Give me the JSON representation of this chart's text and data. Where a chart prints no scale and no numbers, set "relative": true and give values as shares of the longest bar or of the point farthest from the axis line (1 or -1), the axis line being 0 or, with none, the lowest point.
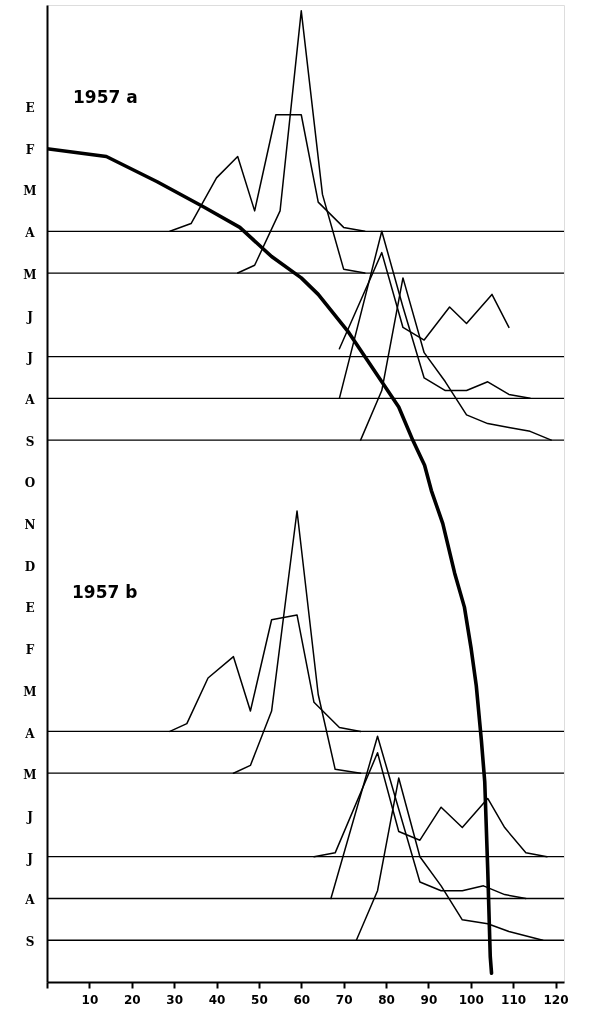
{
  "chart_data": {
    "type": "line",
    "relative": true,
    "annotations": [
      "1957 a",
      "1957 b",
      "E",
      "F",
      "M",
      "A",
      "M",
      "J",
      "J",
      "A",
      "S",
      "O",
      "N",
      "D",
      "E",
      "F",
      "M",
      "A",
      "M",
      "J",
      "J",
      "A",
      "S"
    ],
    "xlim": [
      0,
      122
    ],
    "xticks": [
      {
        "value": 0,
        "label": null
      },
      10,
      20,
      30,
      40,
      50,
      60,
      70,
      80,
      90,
      100,
      110,
      120
    ],
    "ref_lines": [
      {
        "axis": "y",
        "value": 0.773,
        "color": "#000000"
      },
      {
        "axis": "y",
        "value": 0.73,
        "color": "#000000"
      },
      {
        "axis": "y",
        "value": 0.644,
        "color": "#000000"
      },
      {
        "axis": "y",
        "value": 0.601,
        "color": "#000000"
      },
      {
        "axis": "y",
        "value": 0.558,
        "color": "#000000"
      },
      {
        "axis": "y",
        "value": 0.258,
        "color": "#000000"
      },
      {
        "axis": "y",
        "value": 0.215,
        "color": "#000000"
      },
      {
        "axis": "y",
        "value": 0.129,
        "color": "#000000"
      },
      {
        "axis": "y",
        "value": 0.086,
        "color": "#000000"
      },
      {
        "axis": "y",
        "value": 0.043,
        "color": "#000000"
      }
    ],
    "series": [
      {
        "color": "#000000",
        "x": [
          0,
          14,
          26,
          37,
          45.5,
          53,
          60,
          64,
          71,
          79,
          83,
          86.3,
          89.1,
          90.7,
          93.4,
          96.2,
          98.5,
          100.1,
          101.3,
          102.5,
          103.3,
          104,
          104.6,
          104.9
        ],
        "values": [
          0.858,
          0.85,
          0.824,
          0.798,
          0.777,
          0.747,
          0.725,
          0.708,
          0.67,
          0.618,
          0.592,
          0.558,
          0.532,
          0.506,
          0.472,
          0.421,
          0.386,
          0.343,
          0.305,
          0.249,
          0.206,
          0.116,
          0.026,
          0.009
        ]
      },
      {
        "color": "#000000",
        "x": [
          29,
          34,
          40,
          45,
          49,
          54,
          60,
          64,
          70,
          75
        ],
        "values": [
          0.773,
          0.781,
          0.828,
          0.85,
          0.794,
          0.893,
          0.893,
          0.803,
          0.777,
          0.773
        ]
      },
      {
        "color": "#000000",
        "x": [
          45,
          49,
          55,
          60,
          65,
          70,
          75
        ],
        "values": [
          0.73,
          0.738,
          0.794,
          1.0,
          0.811,
          0.734,
          0.73
        ]
      },
      {
        "color": "#000000",
        "x": [
          69,
          79,
          84,
          89,
          95,
          99,
          105,
          109
        ],
        "values": [
          0.652,
          0.751,
          0.674,
          0.661,
          0.695,
          0.678,
          0.708,
          0.674
        ]
      },
      {
        "color": "#000000",
        "x": [
          69,
          79,
          84,
          89,
          94,
          99,
          104,
          109,
          114
        ],
        "values": [
          0.601,
          0.773,
          0.695,
          0.622,
          0.609,
          0.609,
          0.618,
          0.605,
          0.601
        ]
      },
      {
        "color": "#000000",
        "x": [
          74,
          79,
          84,
          89,
          94,
          99,
          104,
          109,
          114,
          119
        ],
        "values": [
          0.558,
          0.609,
          0.725,
          0.648,
          0.618,
          0.584,
          0.575,
          0.571,
          0.567,
          0.558
        ]
      },
      {
        "color": "#000000",
        "x": [
          29,
          33,
          38,
          44,
          48,
          53,
          59,
          63,
          69,
          74
        ],
        "values": [
          0.258,
          0.266,
          0.313,
          0.335,
          0.279,
          0.373,
          0.378,
          0.288,
          0.262,
          0.258
        ]
      },
      {
        "color": "#000000",
        "x": [
          44,
          48,
          53,
          59,
          64,
          68,
          74
        ],
        "values": [
          0.215,
          0.223,
          0.279,
          0.485,
          0.296,
          0.219,
          0.215
        ]
      },
      {
        "color": "#000000",
        "x": [
          63,
          68,
          78,
          83,
          88,
          93,
          98,
          104,
          108,
          113,
          118
        ],
        "values": [
          0.129,
          0.133,
          0.236,
          0.155,
          0.146,
          0.18,
          0.159,
          0.189,
          0.159,
          0.133,
          0.129
        ]
      },
      {
        "color": "#000000",
        "x": [
          67,
          78,
          88,
          93,
          98,
          103,
          108,
          113
        ],
        "values": [
          0.086,
          0.253,
          0.103,
          0.094,
          0.094,
          0.099,
          0.09,
          0.086
        ]
      },
      {
        "color": "#000000",
        "x": [
          73,
          78,
          83,
          88,
          93,
          98,
          104,
          109,
          117
        ],
        "values": [
          0.043,
          0.094,
          0.21,
          0.129,
          0.099,
          0.064,
          0.06,
          0.052,
          0.043
        ]
      }
    ]
  }
}
